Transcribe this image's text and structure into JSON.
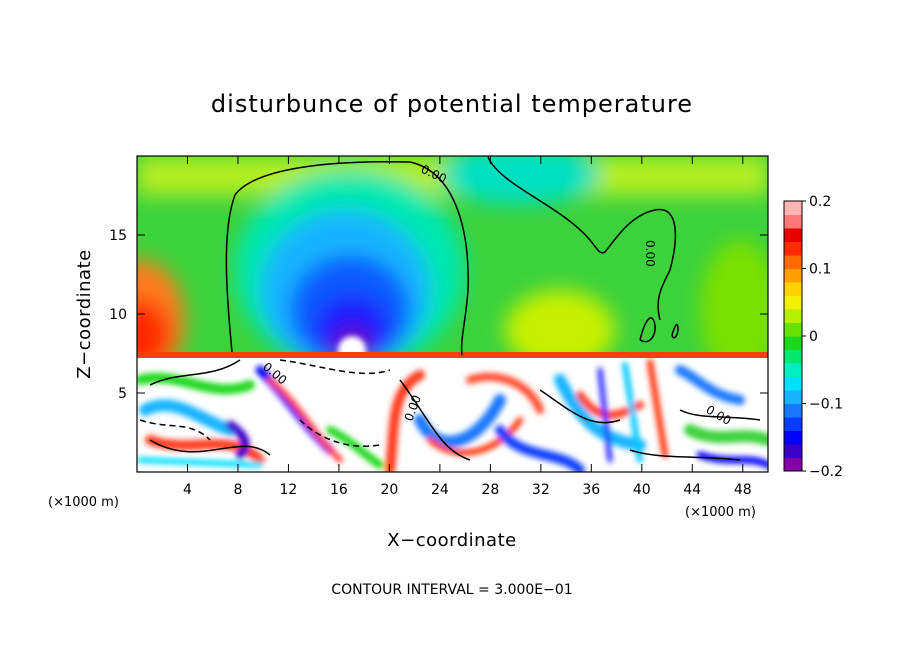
{
  "chart_data": {
    "type": "heatmap",
    "title": "disturbunce of potential temperature",
    "xlabel": "X−coordinate",
    "ylabel": "Z−coordinate",
    "x_unit": "(×1000 m)",
    "y_unit": "(×1000 m)",
    "xlim": [
      0,
      50
    ],
    "ylim": [
      0,
      20
    ],
    "x_ticks": [
      4,
      8,
      12,
      16,
      20,
      24,
      28,
      32,
      36,
      40,
      44,
      48
    ],
    "y_ticks": [
      5,
      10,
      15
    ],
    "colorbar": {
      "min": -0.2,
      "max": 0.2,
      "ticks": [
        {
          "value": 0.2,
          "label": "0.2"
        },
        {
          "value": 0.1,
          "label": "0.1"
        },
        {
          "value": 0.0,
          "label": "0"
        },
        {
          "value": -0.1,
          "label": "−0.1"
        },
        {
          "value": -0.2,
          "label": "−0.2"
        }
      ],
      "colors": [
        "#8800aa",
        "#3a00c8",
        "#0000ff",
        "#0a3cff",
        "#1a78ff",
        "#18b4ff",
        "#00e0ff",
        "#00f0c0",
        "#00e870",
        "#1ed81e",
        "#66e000",
        "#b4f000",
        "#f0f000",
        "#ffd200",
        "#ffa000",
        "#ff6a00",
        "#ff2a00",
        "#e60000",
        "#ff7878",
        "#ffb4b4"
      ]
    },
    "contour_labels": [
      "0.00",
      "0.00",
      "0.00",
      "0.00",
      "0.00"
    ],
    "footer": "CONTOUR INTERVAL = 3.000E−01"
  }
}
